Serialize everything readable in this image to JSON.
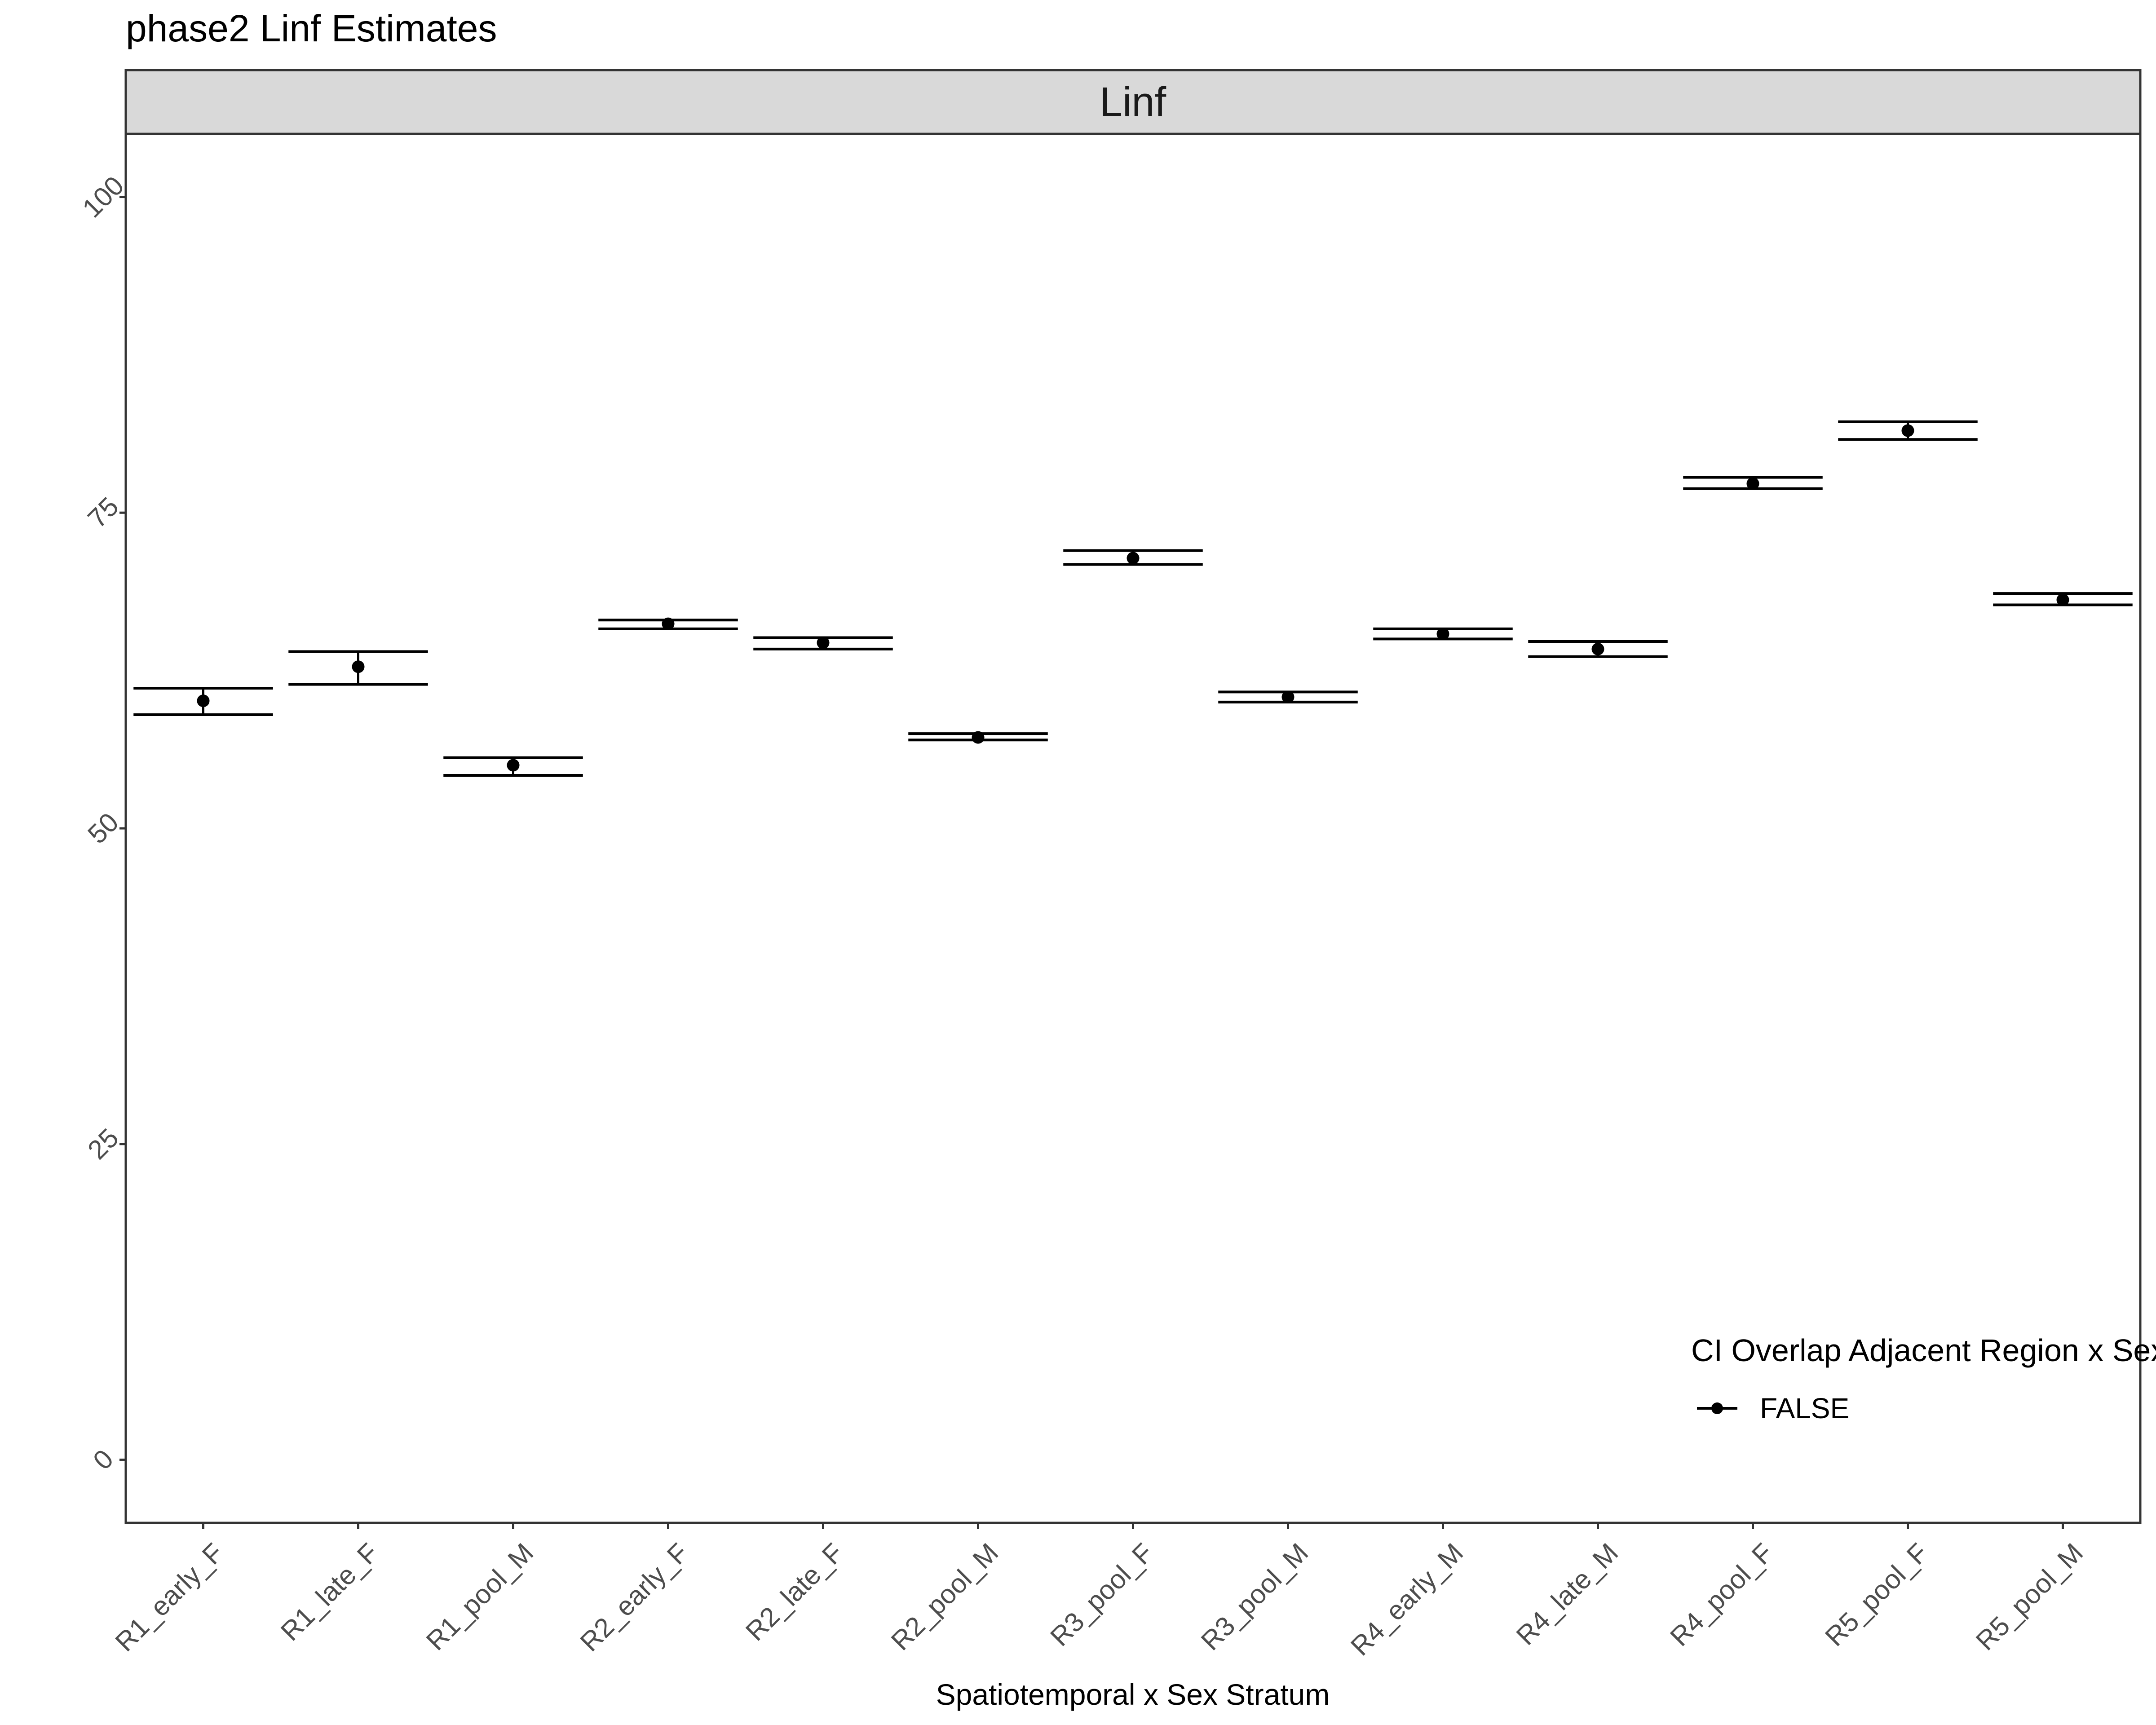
{
  "title": "phase2 Linf Estimates",
  "chart_data": {
    "type": "scatter",
    "title": "phase2 Linf Estimates",
    "facet_label": "Linf",
    "xlabel": "Spatiotemporal x Sex Stratum",
    "ylabel": "",
    "ylim": [
      -5,
      105
    ],
    "yticks": [
      0,
      25,
      50,
      75,
      100
    ],
    "grid": false,
    "categories": [
      "R1_early_F",
      "R1_late_F",
      "R1_pool_M",
      "R2_early_F",
      "R2_late_F",
      "R2_pool_M",
      "R3_pool_F",
      "R3_pool_M",
      "R4_early_M",
      "R4_late_M",
      "R4_pool_F",
      "R5_pool_F",
      "R5_pool_M"
    ],
    "series": [
      {
        "name": "FALSE",
        "estimate": [
          60.1,
          62.8,
          55.0,
          66.2,
          64.7,
          57.2,
          71.4,
          60.4,
          65.4,
          64.2,
          77.3,
          81.5,
          68.1
        ],
        "lower": [
          59.0,
          61.4,
          54.2,
          65.8,
          64.2,
          57.0,
          70.9,
          60.0,
          65.0,
          63.6,
          76.9,
          80.8,
          67.7
        ],
        "upper": [
          61.1,
          64.0,
          55.6,
          66.5,
          65.1,
          57.5,
          72.0,
          60.8,
          65.8,
          64.8,
          77.8,
          82.2,
          68.6
        ]
      }
    ],
    "legend": {
      "title": "CI Overlap Adjacent Region x Sex",
      "entries": [
        "FALSE"
      ],
      "placement": "bottom-right inside"
    },
    "colors": {
      "points": "#000000",
      "strip_fill": "#d9d9d9",
      "panel_border": "#333333"
    }
  }
}
